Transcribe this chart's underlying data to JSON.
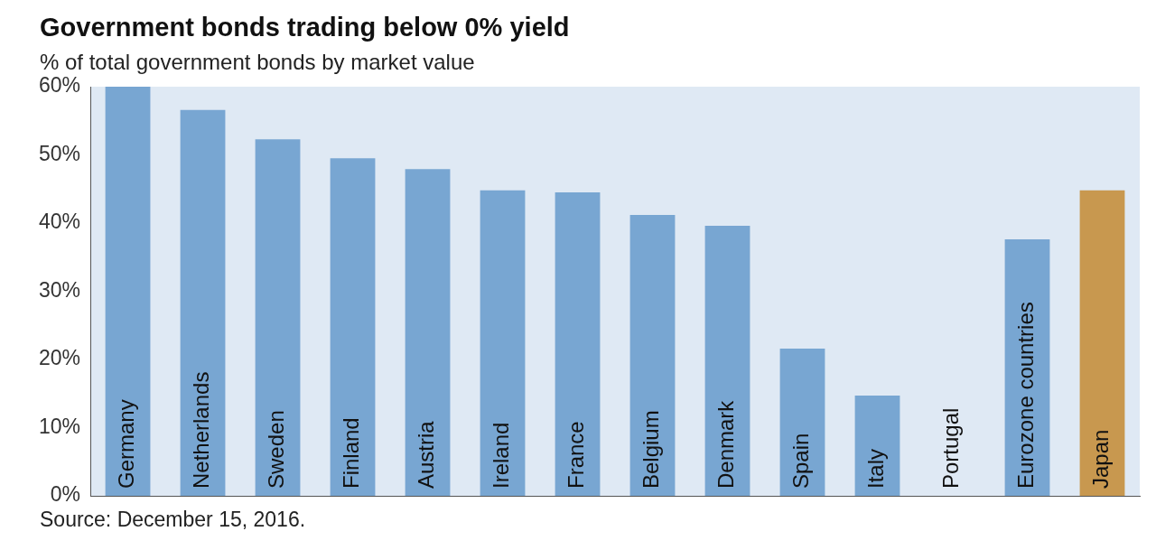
{
  "chart_data": {
    "type": "bar",
    "title": "Government bonds trading below 0% yield",
    "subtitle": "% of total government bonds by market value",
    "categories": [
      "Germany",
      "Netherlands",
      "Sweden",
      "Finland",
      "Austria",
      "Ireland",
      "France",
      "Belgium",
      "Denmark",
      "Spain",
      "Italy",
      "Portugal",
      "Eurozone countries",
      "Japan"
    ],
    "values": [
      60,
      56.6,
      52.3,
      49.5,
      47.9,
      44.8,
      44.5,
      41.2,
      39.6,
      21.6,
      14.7,
      0,
      37.6,
      44.8
    ],
    "colors": [
      "#78a6d2",
      "#78a6d2",
      "#78a6d2",
      "#78a6d2",
      "#78a6d2",
      "#78a6d2",
      "#78a6d2",
      "#78a6d2",
      "#78a6d2",
      "#78a6d2",
      "#78a6d2",
      "#78a6d2",
      "#78a6d2",
      "#c8984f"
    ],
    "ylim": [
      0,
      60
    ],
    "yticks": [
      {
        "value": 0,
        "label": "0%"
      },
      {
        "value": 10,
        "label": "10%"
      },
      {
        "value": 20,
        "label": "20%"
      },
      {
        "value": 30,
        "label": "30%"
      },
      {
        "value": 40,
        "label": "40%"
      },
      {
        "value": 50,
        "label": "50%"
      },
      {
        "value": 60,
        "label": "60%"
      }
    ],
    "grid": false,
    "legend": false,
    "annotations": [
      "Source: December 15, 2016."
    ]
  }
}
